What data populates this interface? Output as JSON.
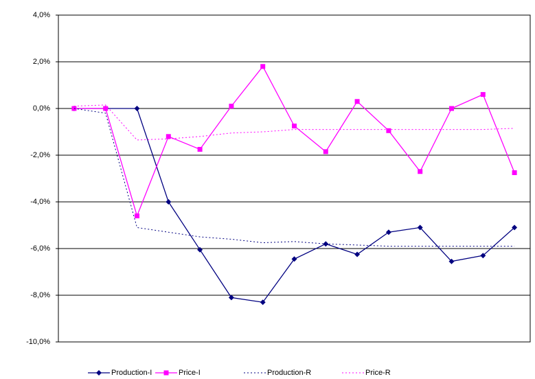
{
  "chart_data": {
    "type": "line",
    "categories": [
      null,
      null,
      null,
      null,
      null,
      null,
      null,
      null,
      null,
      null,
      null,
      null,
      null,
      null,
      null
    ],
    "series": [
      {
        "name": "Production-I",
        "color": "#000080",
        "style": "solid",
        "marker": "diamond",
        "values": [
          0,
          0,
          0,
          -4.0,
          -6.05,
          -8.1,
          -8.3,
          -6.45,
          -5.8,
          -6.25,
          -5.3,
          -5.1,
          -6.55,
          -6.3,
          -5.1
        ]
      },
      {
        "name": "Price-I",
        "color": "#ff00ff",
        "style": "solid",
        "marker": "square",
        "values": [
          0,
          0,
          -4.6,
          -1.2,
          -1.75,
          0.1,
          1.8,
          -0.75,
          -1.85,
          0.3,
          -0.95,
          -2.7,
          0,
          0.6,
          -2.75
        ]
      },
      {
        "name": "Production-R",
        "color": "#000080",
        "style": "dotted",
        "marker": "none",
        "values": [
          0,
          -0.2,
          -5.1,
          -5.3,
          -5.5,
          -5.6,
          -5.75,
          -5.7,
          -5.8,
          -5.85,
          -5.9,
          -5.9,
          -5.9,
          -5.9,
          -5.9
        ]
      },
      {
        "name": "Price-R",
        "color": "#ff00ff",
        "style": "dotted",
        "marker": "none",
        "values": [
          0.1,
          0.15,
          -1.35,
          -1.3,
          -1.2,
          -1.05,
          -1.0,
          -0.9,
          -0.9,
          -0.9,
          -0.9,
          -0.9,
          -0.9,
          -0.9,
          -0.85
        ]
      }
    ],
    "ylim": [
      -10,
      4
    ],
    "yticks": [
      {
        "value": -10,
        "label": "-10,0%"
      },
      {
        "value": -8,
        "label": "-8,0%"
      },
      {
        "value": -6,
        "label": "-6,0%"
      },
      {
        "value": -4,
        "label": "-4,0%"
      },
      {
        "value": -2,
        "label": "-2,0%"
      },
      {
        "value": 0,
        "label": "0,0%"
      },
      {
        "value": 2,
        "label": "2,0%"
      },
      {
        "value": 4,
        "label": "4,0%"
      }
    ],
    "grid": true,
    "legend": "bottom"
  }
}
